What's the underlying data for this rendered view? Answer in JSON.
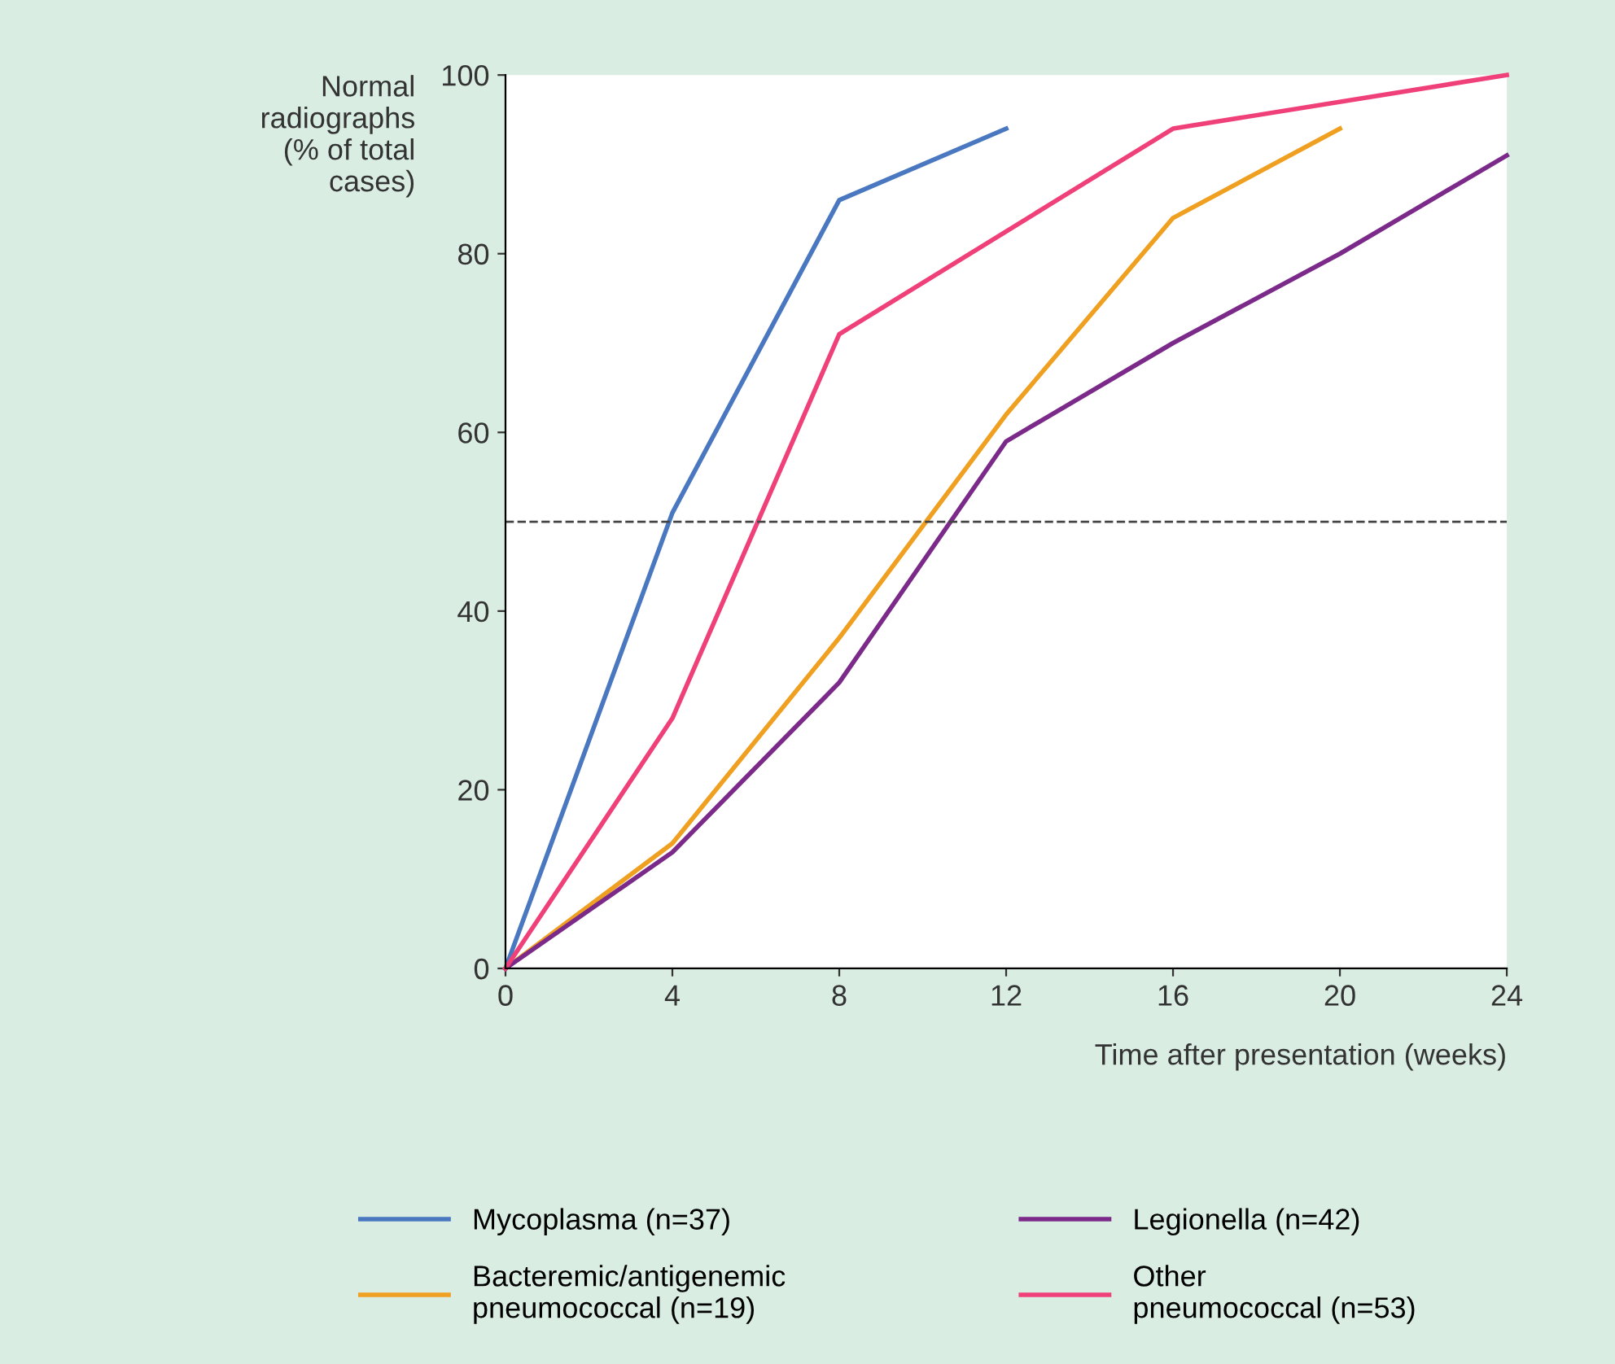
{
  "chart_data": {
    "type": "line",
    "ylabel": "Normal\nradiographs\n(% of total\ncases)",
    "xlabel": "Time after presentation (weeks)",
    "xlim": [
      0,
      24
    ],
    "xticks": [
      0,
      4,
      8,
      12,
      16,
      20,
      24
    ],
    "ylim": [
      0,
      100
    ],
    "yticks": [
      0,
      20,
      40,
      60,
      80,
      100
    ],
    "grid": false,
    "legend": "bottom",
    "marker": "none",
    "line_style": "solid",
    "ref_lines": [
      {
        "axis": "y",
        "value": 50,
        "label": null,
        "color": "#444444",
        "line_style": "dashed"
      }
    ],
    "series": [
      {
        "name": "Mycoplasma (n=37)",
        "color": "#4a78c0",
        "x": [
          0,
          4,
          8,
          12
        ],
        "values": [
          0,
          51,
          86,
          94
        ]
      },
      {
        "name": "Bacteremic/antigenemic\npneumococcal (n=19)",
        "color": "#f0a020",
        "x": [
          0,
          4,
          8,
          12,
          16,
          20
        ],
        "values": [
          0,
          14,
          37,
          62,
          84,
          94
        ]
      },
      {
        "name": "Legionella (n=42)",
        "color": "#7b2a8a",
        "x": [
          0,
          4,
          8,
          12,
          16,
          20,
          24
        ],
        "values": [
          0,
          13,
          32,
          59,
          70,
          80,
          91
        ]
      },
      {
        "name": "Other\npneumococcal (n=53)",
        "color": "#f0407a",
        "x": [
          0,
          4,
          8,
          16,
          24
        ],
        "values": [
          0,
          28,
          71,
          94,
          100
        ]
      }
    ]
  }
}
